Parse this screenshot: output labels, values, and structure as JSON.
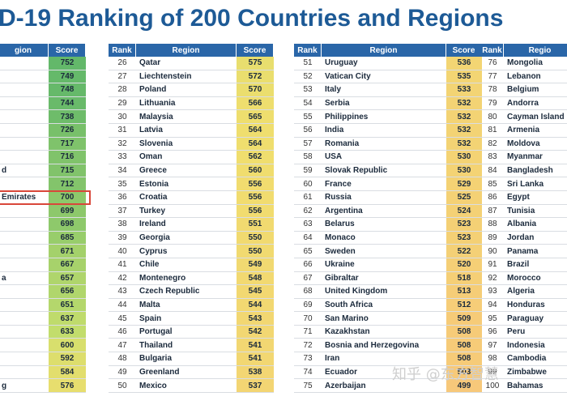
{
  "title": "D-19 Ranking of 200 Countries and Regions",
  "watermark": "知乎 @东方智慧",
  "chart_data": {
    "type": "table",
    "columns": [
      "Rank",
      "Region",
      "Score"
    ],
    "tables": [
      {
        "columns": [
          "gion",
          "Score"
        ],
        "rows": [
          [
            "",
            "752"
          ],
          [
            "",
            "749"
          ],
          [
            "",
            "748"
          ],
          [
            "",
            "744"
          ],
          [
            "",
            "738"
          ],
          [
            "",
            "726"
          ],
          [
            "",
            "717"
          ],
          [
            "",
            "716"
          ],
          [
            "d",
            "715"
          ],
          [
            "",
            "712"
          ],
          [
            "Emirates",
            "700"
          ],
          [
            "",
            "699"
          ],
          [
            "",
            "698"
          ],
          [
            "",
            "685"
          ],
          [
            "",
            "671"
          ],
          [
            "",
            "667"
          ],
          [
            "a",
            "657"
          ],
          [
            "",
            "656"
          ],
          [
            "",
            "651"
          ],
          [
            "",
            "637"
          ],
          [
            "",
            "633"
          ],
          [
            "",
            "600"
          ],
          [
            "",
            "592"
          ],
          [
            "",
            "584"
          ],
          [
            "g",
            "576"
          ]
        ]
      },
      {
        "columns": [
          "Rank",
          "Region",
          "Score"
        ],
        "rows": [
          [
            "26",
            "Qatar",
            "575"
          ],
          [
            "27",
            "Liechtenstein",
            "572"
          ],
          [
            "28",
            "Poland",
            "570"
          ],
          [
            "29",
            "Lithuania",
            "566"
          ],
          [
            "30",
            "Malaysia",
            "565"
          ],
          [
            "31",
            "Latvia",
            "564"
          ],
          [
            "32",
            "Slovenia",
            "564"
          ],
          [
            "33",
            "Oman",
            "562"
          ],
          [
            "34",
            "Greece",
            "560"
          ],
          [
            "35",
            "Estonia",
            "556"
          ],
          [
            "36",
            "Croatia",
            "556"
          ],
          [
            "37",
            "Turkey",
            "556"
          ],
          [
            "38",
            "Ireland",
            "551"
          ],
          [
            "39",
            "Georgia",
            "550"
          ],
          [
            "40",
            "Cyprus",
            "550"
          ],
          [
            "41",
            "Chile",
            "549"
          ],
          [
            "42",
            "Montenegro",
            "548"
          ],
          [
            "43",
            "Czech Republic",
            "545"
          ],
          [
            "44",
            "Malta",
            "544"
          ],
          [
            "45",
            "Spain",
            "543"
          ],
          [
            "46",
            "Portugal",
            "542"
          ],
          [
            "47",
            "Thailand",
            "541"
          ],
          [
            "48",
            "Bulgaria",
            "541"
          ],
          [
            "49",
            "Greenland",
            "538"
          ],
          [
            "50",
            "Mexico",
            "537"
          ]
        ]
      },
      {
        "columns": [
          "Rank",
          "Region",
          "Score"
        ],
        "rows": [
          [
            "51",
            "Uruguay",
            "536"
          ],
          [
            "52",
            "Vatican City",
            "535"
          ],
          [
            "53",
            "Italy",
            "533"
          ],
          [
            "54",
            "Serbia",
            "532"
          ],
          [
            "55",
            "Philippines",
            "532"
          ],
          [
            "56",
            "India",
            "532"
          ],
          [
            "57",
            "Romania",
            "532"
          ],
          [
            "58",
            "USA",
            "530"
          ],
          [
            "59",
            "Slovak Republic",
            "530"
          ],
          [
            "60",
            "France",
            "529"
          ],
          [
            "61",
            "Russia",
            "525"
          ],
          [
            "62",
            "Argentina",
            "524"
          ],
          [
            "63",
            "Belarus",
            "523"
          ],
          [
            "64",
            "Monaco",
            "523"
          ],
          [
            "65",
            "Sweden",
            "522"
          ],
          [
            "66",
            "Ukraine",
            "520"
          ],
          [
            "67",
            "Gibraltar",
            "518"
          ],
          [
            "68",
            "United Kingdom",
            "513"
          ],
          [
            "69",
            "South Africa",
            "512"
          ],
          [
            "70",
            "San Marino",
            "509"
          ],
          [
            "71",
            "Kazakhstan",
            "508"
          ],
          [
            "72",
            "Bosnia and Herzegovina",
            "508"
          ],
          [
            "73",
            "Iran",
            "508"
          ],
          [
            "74",
            "Ecuador",
            "503"
          ],
          [
            "75",
            "Azerbaijan",
            "499"
          ]
        ]
      },
      {
        "columns": [
          "Rank",
          "Regio"
        ],
        "rows": [
          [
            "76",
            "Mongolia"
          ],
          [
            "77",
            "Lebanon"
          ],
          [
            "78",
            "Belgium"
          ],
          [
            "79",
            "Andorra"
          ],
          [
            "80",
            "Cayman Island"
          ],
          [
            "81",
            "Armenia"
          ],
          [
            "82",
            "Moldova"
          ],
          [
            "83",
            "Myanmar"
          ],
          [
            "84",
            "Bangladesh"
          ],
          [
            "85",
            "Sri Lanka"
          ],
          [
            "86",
            "Egypt"
          ],
          [
            "87",
            "Tunisia"
          ],
          [
            "88",
            "Albania"
          ],
          [
            "89",
            "Jordan"
          ],
          [
            "90",
            "Panama"
          ],
          [
            "91",
            "Brazil"
          ],
          [
            "92",
            "Morocco"
          ],
          [
            "93",
            "Algeria"
          ],
          [
            "94",
            "Honduras"
          ],
          [
            "95",
            "Paraguay"
          ],
          [
            "96",
            "Peru"
          ],
          [
            "97",
            "Indonesia"
          ],
          [
            "98",
            "Cambodia"
          ],
          [
            "99",
            "Zimbabwe"
          ],
          [
            "100",
            "Bahamas"
          ]
        ]
      }
    ],
    "highlighted_row": "Emirates",
    "colors": {
      "header": "#2a66a8",
      "score_high": "#63b86a",
      "score_mid": "#c6df6e",
      "score_low": "#f7c87a",
      "highlight_border": "#d9473a"
    }
  }
}
